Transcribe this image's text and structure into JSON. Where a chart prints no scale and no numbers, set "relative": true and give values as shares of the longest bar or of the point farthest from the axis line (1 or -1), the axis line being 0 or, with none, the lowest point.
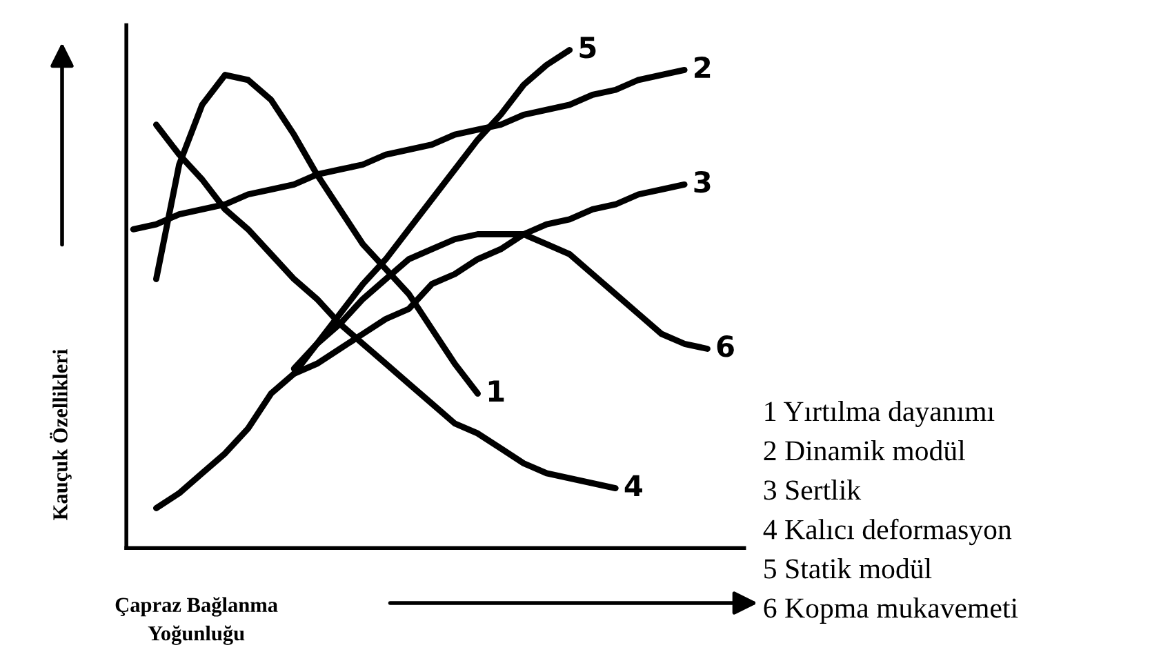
{
  "chart_data": {
    "type": "line",
    "relative": true,
    "xlabel": "Çapraz Bağlanma\nYoğunluğu",
    "ylabel": "Kauçuk Özellikleri",
    "grid": false,
    "legend": false,
    "marker": "none",
    "line_style": "solid",
    "categories": [
      null,
      null,
      null,
      null,
      null,
      null,
      null,
      null,
      null,
      null,
      null,
      null,
      null,
      null,
      null,
      null,
      null,
      null,
      null,
      null,
      null,
      null,
      null,
      null,
      null,
      null,
      null
    ],
    "series": [
      {
        "name": "1",
        "color": "#000000",
        "values": [
          null,
          0.54,
          0.77,
          0.89,
          0.95,
          0.94,
          0.9,
          0.83,
          0.75,
          0.68,
          0.61,
          0.56,
          0.51,
          0.44,
          0.37,
          0.31,
          null,
          null,
          null,
          null,
          null,
          null,
          null,
          null,
          null,
          null,
          null
        ]
      },
      {
        "name": "2",
        "color": "#000000",
        "values": [
          0.64,
          0.65,
          0.67,
          0.68,
          0.69,
          0.71,
          0.72,
          0.73,
          0.75,
          0.76,
          0.77,
          0.79,
          0.8,
          0.81,
          0.83,
          0.84,
          0.85,
          0.87,
          0.88,
          0.89,
          0.91,
          0.92,
          0.94,
          0.95,
          0.96,
          null,
          null
        ]
      },
      {
        "name": "3",
        "color": "#000000",
        "values": [
          null,
          0.08,
          0.11,
          0.15,
          0.19,
          0.24,
          0.31,
          0.35,
          0.37,
          0.4,
          0.43,
          0.46,
          0.48,
          0.53,
          0.55,
          0.58,
          0.6,
          0.63,
          0.65,
          0.66,
          0.68,
          0.69,
          0.71,
          0.72,
          0.73,
          null,
          null
        ]
      },
      {
        "name": "4",
        "color": "#000000",
        "values": [
          null,
          0.85,
          0.79,
          0.74,
          0.68,
          0.64,
          0.59,
          0.54,
          0.5,
          0.45,
          0.41,
          0.37,
          0.33,
          0.29,
          0.25,
          0.23,
          0.2,
          0.17,
          0.15,
          0.14,
          0.13,
          0.12,
          null,
          null,
          null,
          null,
          null
        ]
      },
      {
        "name": "5",
        "color": "#000000",
        "values": [
          null,
          null,
          null,
          null,
          null,
          null,
          null,
          0.35,
          0.41,
          0.47,
          0.53,
          0.58,
          0.64,
          0.7,
          0.76,
          0.82,
          0.87,
          0.93,
          0.97,
          1.0,
          null,
          null,
          null,
          null,
          null,
          null,
          null
        ]
      },
      {
        "name": "6",
        "color": "#000000",
        "values": [
          null,
          null,
          null,
          null,
          null,
          null,
          null,
          0.36,
          0.41,
          0.45,
          0.5,
          0.54,
          0.58,
          0.6,
          0.62,
          0.63,
          0.63,
          0.63,
          0.61,
          0.59,
          0.55,
          0.51,
          0.47,
          0.43,
          0.41,
          0.4,
          null
        ]
      }
    ],
    "annotations": [
      "1 Yırtılma dayanımı",
      "2 Dinamik modül",
      "3 Sertlik",
      "4 Kalıcı deformasyon",
      "5 Statik modül",
      "6 Kopma mukavemeti"
    ]
  }
}
